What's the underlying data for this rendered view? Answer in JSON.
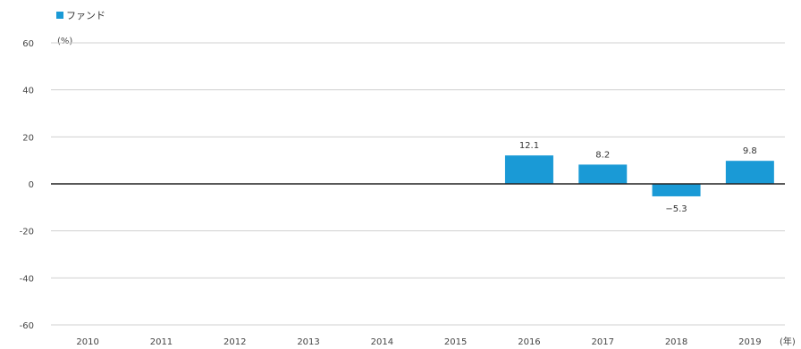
{
  "chart_data": {
    "type": "bar",
    "categories": [
      "2010",
      "2011",
      "2012",
      "2013",
      "2014",
      "2015",
      "2016",
      "2017",
      "2018",
      "2019"
    ],
    "series": [
      {
        "name": "ファンド",
        "values": [
          null,
          null,
          null,
          null,
          null,
          null,
          12.1,
          8.2,
          -5.3,
          9.8
        ],
        "labels": [
          "",
          "",
          "",
          "",
          "",
          "",
          "12.1",
          "8.2",
          "−5.3",
          "9.8"
        ]
      }
    ],
    "ylim": [
      -60,
      60
    ],
    "yticks": [
      60,
      40,
      20,
      0,
      -20,
      -40,
      -60
    ],
    "ytick_labels": [
      "60",
      "40",
      "20",
      "0",
      "-20",
      "-40",
      "-60"
    ],
    "y_unit": "(%)",
    "x_unit": "(年)",
    "legend": {
      "label": "ファンド",
      "position": "top-left"
    },
    "grid": true,
    "colors": {
      "bar": "#1a9ad6",
      "grid": "#d0d0d0",
      "zero_line": "#222222"
    }
  }
}
